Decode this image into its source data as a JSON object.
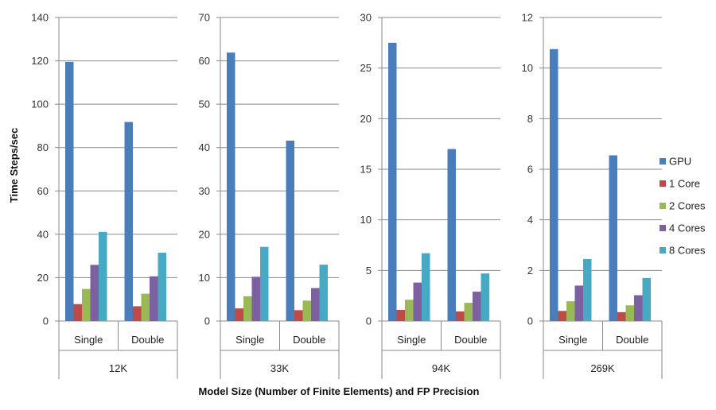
{
  "chart_data": {
    "type": "bar",
    "xlabel": "Model Size (Number of Finite Elements) and FP Precision",
    "ylabel": "Time Steps/sec",
    "legend_position": "right",
    "grid": true,
    "series": [
      {
        "name": "GPU",
        "color": "#4A7EBB"
      },
      {
        "name": "1 Core",
        "color": "#BE4B48"
      },
      {
        "name": "2 Cores",
        "color": "#98B954"
      },
      {
        "name": "4 Cores",
        "color": "#7D60A0"
      },
      {
        "name": "8 Cores",
        "color": "#46AAC5"
      }
    ],
    "panels": [
      {
        "model_size": "12K",
        "ylim": [
          0,
          140
        ],
        "yticks": [
          0,
          20,
          40,
          60,
          80,
          100,
          120,
          140
        ],
        "groups": [
          {
            "precision": "Single",
            "values": [
              119.5,
              7.8,
              14.8,
              25.9,
              41.1
            ]
          },
          {
            "precision": "Double",
            "values": [
              91.8,
              6.8,
              12.6,
              20.6,
              31.5
            ]
          }
        ]
      },
      {
        "model_size": "33K",
        "ylim": [
          0,
          70
        ],
        "yticks": [
          0,
          10,
          20,
          30,
          40,
          50,
          60,
          70
        ],
        "groups": [
          {
            "precision": "Single",
            "values": [
              61.9,
              2.9,
              5.7,
              10.2,
              17.1
            ]
          },
          {
            "precision": "Double",
            "values": [
              41.6,
              2.5,
              4.7,
              7.6,
              13.0
            ]
          }
        ]
      },
      {
        "model_size": "94K",
        "ylim": [
          0,
          30
        ],
        "yticks": [
          0,
          5,
          10,
          15,
          20,
          25,
          30
        ],
        "groups": [
          {
            "precision": "Single",
            "values": [
              27.5,
              1.1,
              2.1,
              3.8,
              6.7
            ]
          },
          {
            "precision": "Double",
            "values": [
              17.0,
              0.95,
              1.8,
              2.9,
              4.7
            ]
          }
        ]
      },
      {
        "model_size": "269K",
        "ylim": [
          0,
          12
        ],
        "yticks": [
          0,
          2,
          4,
          6,
          8,
          10,
          12
        ],
        "groups": [
          {
            "precision": "Single",
            "values": [
              10.75,
              0.4,
              0.78,
              1.4,
              2.45
            ]
          },
          {
            "precision": "Double",
            "values": [
              6.55,
              0.35,
              0.62,
              1.02,
              1.7
            ]
          }
        ]
      }
    ]
  }
}
